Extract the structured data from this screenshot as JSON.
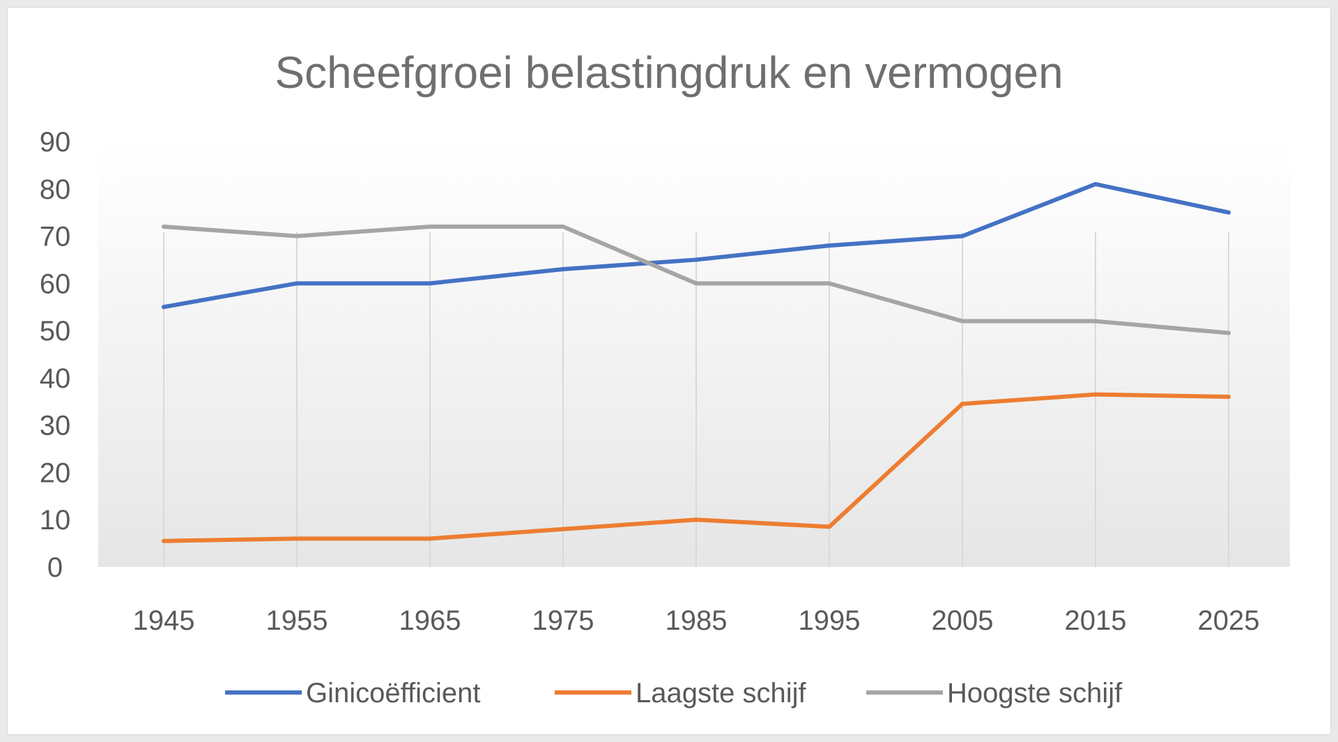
{
  "chart_data": {
    "type": "line",
    "title": "Scheefgroei belastingdruk en vermogen",
    "xlabel": "",
    "ylabel": "",
    "categories": [
      "1945",
      "1955",
      "1965",
      "1975",
      "1985",
      "1995",
      "2005",
      "2015",
      "2025"
    ],
    "ylim": [
      0,
      90
    ],
    "yticks": [
      "0",
      "10",
      "20",
      "30",
      "40",
      "50",
      "60",
      "70",
      "80",
      "90"
    ],
    "grid": "vertical",
    "legend_position": "bottom",
    "series": [
      {
        "name": "Ginicoëfficient",
        "color": "#4472c4",
        "values": [
          55,
          60,
          60,
          63,
          65,
          68,
          70,
          81,
          75
        ]
      },
      {
        "name": "Laagste schijf",
        "color": "#ed7d31",
        "values": [
          5.5,
          6,
          6,
          8,
          10,
          8.5,
          34.5,
          36.5,
          36
        ]
      },
      {
        "name": "Hoogste schijf",
        "color": "#a5a5a5",
        "values": [
          72,
          70,
          72,
          72,
          60,
          60,
          52,
          52,
          49.5
        ]
      }
    ]
  }
}
